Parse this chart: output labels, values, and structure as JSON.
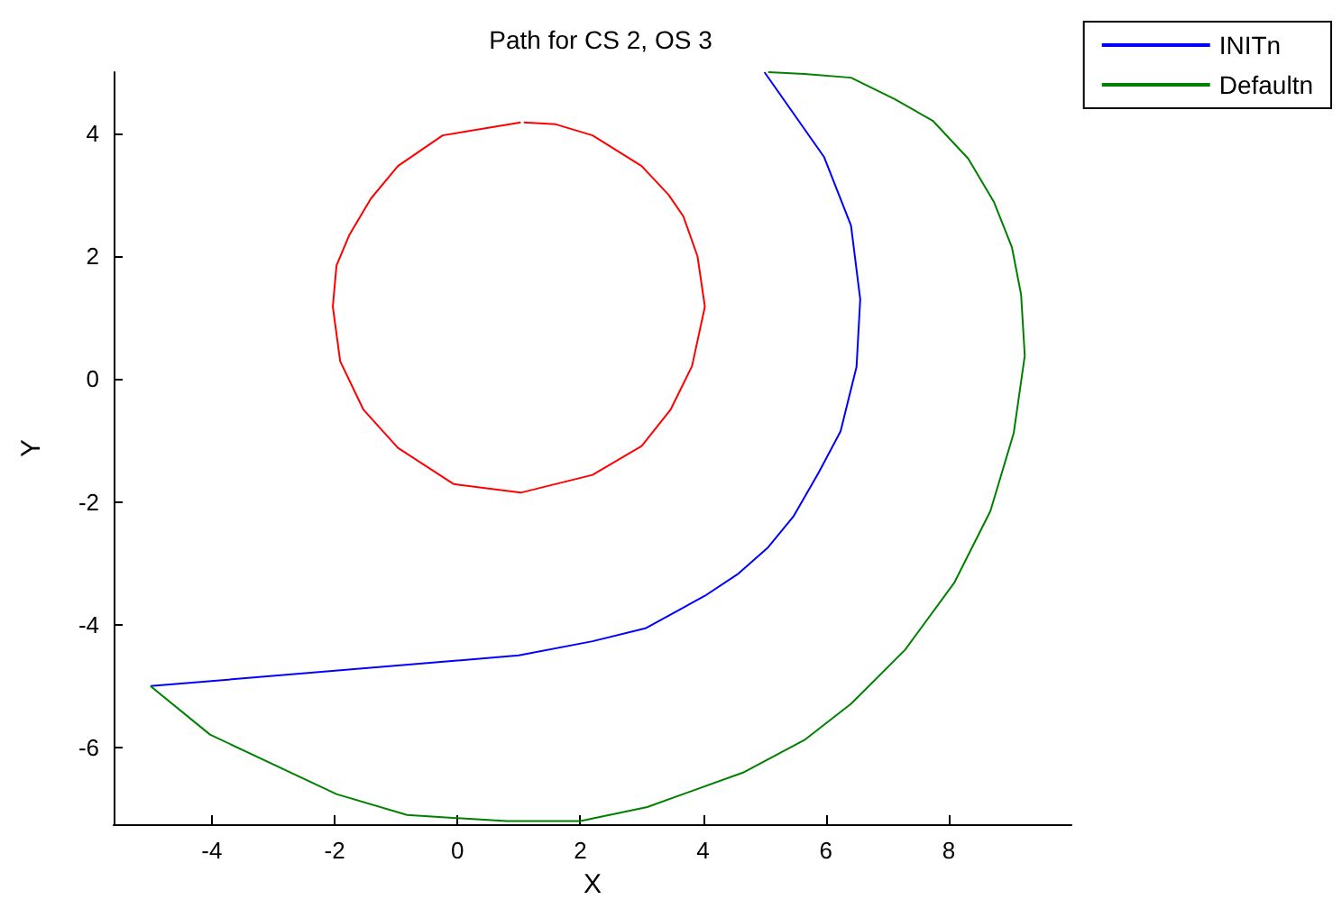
{
  "chart_data": {
    "type": "line",
    "title": "Path for CS 2, OS 3",
    "xlabel": "X",
    "ylabel": "Y",
    "xlim": [
      -5.6,
      10
    ],
    "ylim": [
      -7.25,
      5
    ],
    "xticks": [
      -4,
      -2,
      0,
      2,
      4,
      6,
      8
    ],
    "yticks": [
      -6,
      -4,
      -2,
      0,
      2,
      4
    ],
    "grid": false,
    "legend": "top right",
    "marker": "none",
    "series": [
      {
        "name": "INITn",
        "color": "#0000ff",
        "x": [
          5,
          5.97,
          6.41,
          6.56,
          6.5,
          6.24,
          5.88,
          5.47,
          5.06,
          4.56,
          4.03,
          3.06,
          2.2,
          1,
          -5
        ],
        "values": [
          5,
          3.62,
          2.5,
          1.3,
          0.2,
          -0.85,
          -1.53,
          -2.24,
          -2.74,
          -3.18,
          -3.53,
          -4.06,
          -4.27,
          -4.5,
          -5
        ]
      },
      {
        "name": "Defaultn",
        "color": "#008000",
        "x": [
          -5,
          -4.03,
          -1.97,
          -0.82,
          0.8,
          2,
          3.09,
          4.65,
          5.65,
          6.41,
          7.29,
          8.09,
          8.68,
          9.06,
          9.24,
          9.18,
          9.03,
          8.74,
          8.32,
          7.74,
          7.12,
          6.41,
          5.65,
          5.06
        ],
        "values": [
          -5,
          -5.79,
          -6.76,
          -7.1,
          -7.2,
          -7.2,
          -6.97,
          -6.41,
          -5.88,
          -5.29,
          -4.41,
          -3.32,
          -2.15,
          -0.88,
          0.38,
          1.38,
          2.15,
          2.88,
          3.59,
          4.21,
          4.56,
          4.91,
          4.97,
          5
        ]
      },
      {
        "color": "#ff0000",
        "x": [
          1.03,
          -0.24,
          -0.97,
          -1.41,
          -1.76,
          -1.97,
          -2.03,
          -1.91,
          -1.53,
          -0.97,
          -0.06,
          1.03,
          2.2,
          3,
          3.47,
          3.82,
          4.03,
          3.91,
          3.68,
          3.44,
          3,
          2.2,
          1.6,
          1.08
        ],
        "values": [
          4.18,
          3.97,
          3.47,
          2.94,
          2.35,
          1.85,
          1.18,
          0.29,
          -0.5,
          -1.12,
          -1.71,
          -1.85,
          -1.56,
          -1.09,
          -0.5,
          0.21,
          1.18,
          2,
          2.65,
          3,
          3.47,
          3.97,
          4.15,
          4.18
        ]
      }
    ]
  }
}
